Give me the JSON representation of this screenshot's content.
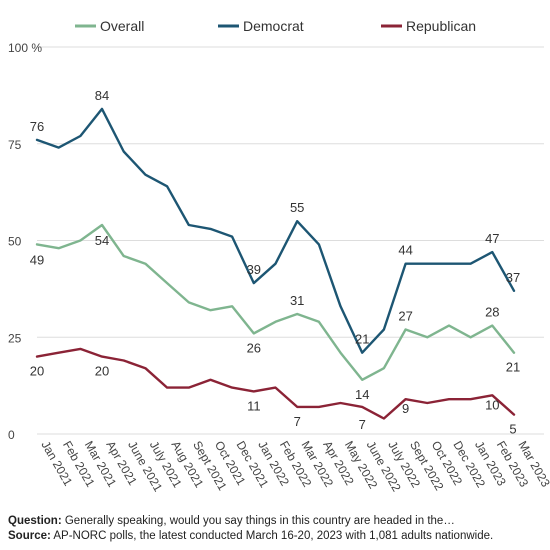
{
  "chart_data": {
    "type": "line",
    "x": [
      "Jan 2021",
      "Feb 2021",
      "Mar 2021",
      "Apr 2021",
      "June 2021",
      "July 2021",
      "Aug 2021",
      "Sept 2021",
      "Oct 2021",
      "Dec 2021",
      "Jan 2022",
      "Feb 2022",
      "Mar 2022",
      "Apr 2022",
      "May 2022",
      "June 2022",
      "July 2022",
      "Sept 2022",
      "Oct 2022",
      "Dec 2022",
      "Jan 2023",
      "Feb 2023",
      "Mar 2023"
    ],
    "series": [
      {
        "name": "Overall",
        "color": "#7fb58f",
        "values": [
          49,
          48,
          50,
          54,
          46,
          44,
          39,
          34,
          32,
          33,
          26,
          29,
          31,
          29,
          21,
          14,
          17,
          27,
          25,
          28,
          25,
          28,
          21
        ]
      },
      {
        "name": "Democrat",
        "color": "#1d5673",
        "values": [
          76,
          74,
          77,
          84,
          73,
          67,
          64,
          54,
          53,
          51,
          39,
          44,
          55,
          49,
          33,
          21,
          27,
          44,
          44,
          44,
          44,
          47,
          37
        ]
      },
      {
        "name": "Republican",
        "color": "#8b2336",
        "values": [
          20,
          21,
          22,
          20,
          19,
          17,
          12,
          12,
          14,
          12,
          11,
          12,
          7,
          7,
          8,
          7,
          4,
          9,
          8,
          9,
          9,
          10,
          5
        ]
      }
    ],
    "data_labels": [
      {
        "series": 1,
        "index": 0,
        "text": "76"
      },
      {
        "series": 1,
        "index": 3,
        "text": "84"
      },
      {
        "series": 1,
        "index": 10,
        "text": "39"
      },
      {
        "series": 1,
        "index": 12,
        "text": "55"
      },
      {
        "series": 1,
        "index": 15,
        "text": "21"
      },
      {
        "series": 1,
        "index": 17,
        "text": "44"
      },
      {
        "series": 1,
        "index": 21,
        "text": "47"
      },
      {
        "series": 1,
        "index": 22,
        "text": "37"
      },
      {
        "series": 0,
        "index": 0,
        "text": "49"
      },
      {
        "series": 0,
        "index": 3,
        "text": "54"
      },
      {
        "series": 0,
        "index": 10,
        "text": "26"
      },
      {
        "series": 0,
        "index": 12,
        "text": "31"
      },
      {
        "series": 0,
        "index": 15,
        "text": "14"
      },
      {
        "series": 0,
        "index": 17,
        "text": "27"
      },
      {
        "series": 0,
        "index": 21,
        "text": "28"
      },
      {
        "series": 0,
        "index": 22,
        "text": "21"
      },
      {
        "series": 2,
        "index": 0,
        "text": "20"
      },
      {
        "series": 2,
        "index": 3,
        "text": "20"
      },
      {
        "series": 2,
        "index": 10,
        "text": "11"
      },
      {
        "series": 2,
        "index": 12,
        "text": "7"
      },
      {
        "series": 2,
        "index": 15,
        "text": "7"
      },
      {
        "series": 2,
        "index": 17,
        "text": "9"
      },
      {
        "series": 2,
        "index": 21,
        "text": "10"
      },
      {
        "series": 2,
        "index": 22,
        "text": "5"
      }
    ],
    "y_ticks": [
      {
        "value": 0,
        "label": "0"
      },
      {
        "value": 25,
        "label": "25"
      },
      {
        "value": 50,
        "label": "50"
      },
      {
        "value": 75,
        "label": "75"
      },
      {
        "value": 100,
        "label": "100 %"
      }
    ],
    "ylim": [
      0,
      100
    ],
    "grid": true,
    "legend": "top"
  },
  "footer": {
    "question_label": "Question:",
    "question_text": " Generally speaking, would you say things in this country are headed in the…",
    "source_label": "Source:",
    "source_text": " AP-NORC polls, the latest conducted March 16-20, 2023 with 1,081 adults nationwide."
  }
}
